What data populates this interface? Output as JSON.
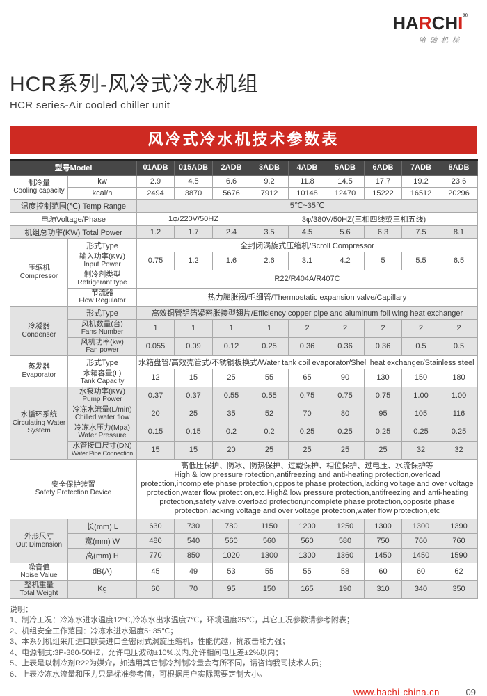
{
  "colors": {
    "accent_red": "#ce2a22",
    "logo_red": "#d2241c",
    "header_row_bg": "#474747",
    "band_gray": "#e3e3e3"
  },
  "logo": {
    "ha": "HA",
    "r": "R",
    "ch": "CH",
    "i": "I",
    "registered": "®",
    "subtitle": "哈驰机械"
  },
  "header": {
    "title": "HCR系列-风冷式冷水机组",
    "subtitle": "HCR series-Air cooled chiller unit",
    "banner": "风冷式冷水机技术参数表"
  },
  "table": {
    "model_header": "型号Model",
    "models": [
      "01ADB",
      "015ADB",
      "2ADB",
      "3ADB",
      "4ADB",
      "5ADB",
      "6ADB",
      "7ADB",
      "8ADB"
    ],
    "cooling": {
      "zh": "制冷量",
      "en": "Cooling capacity",
      "kw_label": "kw",
      "kw": [
        "2.9",
        "4.5",
        "6.6",
        "9.2",
        "11.8",
        "14.5",
        "17.7",
        "19.2",
        "23.6"
      ],
      "kcal_label": "kcal/h",
      "kcal": [
        "2494",
        "3870",
        "5676",
        "7912",
        "10148",
        "12470",
        "15222",
        "16512",
        "20296"
      ]
    },
    "temp_range": {
      "label": "温度控制范围(℃) Temp Range",
      "value": "5℃~35℃"
    },
    "power_supply": {
      "label": "电源Voltage/Phase",
      "single_phase": "1φ/220V/50HZ",
      "three_phase": "3φ/380V/50HZ(三相四线或三相五线)"
    },
    "total_power": {
      "label": "机组总功率(KW) Total Power",
      "values": [
        "1.2",
        "1.7",
        "2.4",
        "3.5",
        "4.5",
        "5.6",
        "6.3",
        "7.5",
        "8.1"
      ]
    },
    "compressor": {
      "zh": "压缩机",
      "en": "Compressor",
      "type_label": "形式Type",
      "type_value": "全封闭涡旋式压缩机/Scroll Compressor",
      "input_zh": "输入功率(KW)",
      "input_en": "Input Power",
      "input_values": [
        "0.75",
        "1.2",
        "1.6",
        "2.6",
        "3.1",
        "4.2",
        "5",
        "5.5",
        "6.5"
      ],
      "refrigerant_zh": "制冷剂类型",
      "refrigerant_en": "Refrigerant type",
      "refrigerant_value": "R22/R404A/R407C",
      "flow_zh": "节流器",
      "flow_en": "Flow Regulator",
      "flow_value": "热力膨胀阀/毛细管/Thermostatic expansion valve/Capillary"
    },
    "condenser": {
      "zh": "冷凝器",
      "en": "Condenser",
      "type_label": "形式Type",
      "type_value": "高效铜管铝箔紧密胀接型翅片/Efficiency copper pipe and aluminum foil wing heat exchanger",
      "fans_zh": "风机数量(台)",
      "fans_en": "Fans Number",
      "fans_values": [
        "1",
        "1",
        "1",
        "1",
        "2",
        "2",
        "2",
        "2",
        "2"
      ],
      "fanpower_zh": "风机功率(kw)",
      "fanpower_en": "Fan power",
      "fanpower_values": [
        "0.055",
        "0.09",
        "0.12",
        "0.25",
        "0.36",
        "0.36",
        "0.36",
        "0.5",
        "0.5"
      ]
    },
    "evaporator": {
      "zh": "蒸发器",
      "en": "Evaporator",
      "type_label": "形式Type",
      "type_value": "水箱盘管/高效壳管式/不锈钢板换式/Water tank coil evaporator/Shell heat exchanger/Stainless steel plate heat exchanger",
      "tank_zh": "水箱容量(L)",
      "tank_en": "Tank Capacity",
      "tank_values": [
        "12",
        "15",
        "25",
        "55",
        "65",
        "90",
        "130",
        "150",
        "180"
      ]
    },
    "water_system": {
      "zh": "水循环系统",
      "en": "Circulating Water System",
      "pump_zh": "水泵功率(KW)",
      "pump_en": "Pump Power",
      "pump_values": [
        "0.37",
        "0.37",
        "0.55",
        "0.55",
        "0.75",
        "0.75",
        "0.75",
        "1.00",
        "1.00"
      ],
      "flow_zh": "冷冻水流量(L/min)",
      "flow_en": "Chilled water flow",
      "flow_values": [
        "20",
        "25",
        "35",
        "52",
        "70",
        "80",
        "95",
        "105",
        "116"
      ],
      "pressure_zh": "冷冻水压力(Mpa)",
      "pressure_en": "Water Pressure",
      "pressure_values": [
        "0.15",
        "0.15",
        "0.2",
        "0.2",
        "0.25",
        "0.25",
        "0.25",
        "0.25",
        "0.25"
      ],
      "pipe_zh": "水管接口尺寸(DN)",
      "pipe_en": "Water Pipe Connection",
      "pipe_values": [
        "15",
        "15",
        "20",
        "25",
        "25",
        "25",
        "25",
        "32",
        "32"
      ]
    },
    "safety": {
      "zh": "安全保护装置",
      "en": "Safety Protection Device",
      "text_zh": "高低压保护、防冰、防热保护、过载保护、相位保护、过电压、水流保护等",
      "text_en": "High & low pressure rotection,antifreezing and anti-heating protection,overload protection,incomplete phase protection,opposite phase protection,lacking voltage and over voltage protection,water flow protection,etc.High& low pressure protection,antifreezing and anti-heating protection,safety valve,overload protection,incomplete phase protection,opposite phase protection,lacking voltage and over voltage protection,water flow protection,etc"
    },
    "dimension": {
      "zh": "外形尺寸",
      "en": "Out Dimension",
      "l_label": "长(mm) L",
      "l_values": [
        "630",
        "730",
        "780",
        "1150",
        "1200",
        "1250",
        "1300",
        "1300",
        "1390"
      ],
      "w_label": "宽(mm) W",
      "w_values": [
        "480",
        "540",
        "560",
        "560",
        "560",
        "580",
        "750",
        "760",
        "760"
      ],
      "h_label": "高(mm) H",
      "h_values": [
        "770",
        "850",
        "1020",
        "1300",
        "1300",
        "1360",
        "1450",
        "1450",
        "1590"
      ]
    },
    "noise": {
      "zh": "噪音值",
      "en": "Noise Value",
      "unit": "dB(A)",
      "values": [
        "45",
        "49",
        "53",
        "55",
        "55",
        "58",
        "60",
        "60",
        "62"
      ]
    },
    "weight": {
      "zh": "整机重量",
      "en": "Total Weight",
      "unit": "Kg",
      "values": [
        "60",
        "70",
        "95",
        "150",
        "165",
        "190",
        "310",
        "340",
        "350"
      ]
    }
  },
  "notes": {
    "heading": "说明：",
    "items": [
      "1、制冷工况：冷冻水进水温度12℃,冷冻水出水温度7℃，环境温度35℃，其它工况参数请参考附表；",
      "2、机组安全工作范围：冷冻水进水温度5~35℃；",
      "3、本系列机组采用进口欧美进口全密闭式涡旋压缩机，性能优越，抗液击能力强；",
      "4、电源制式:3P-380-50HZ，允许电压波动±10%以内,允许相间电压差±2%以内；",
      "5、上表是以制冷剂R22为媒介，如选用其它制冷剂制冷量会有所不同，请咨询我司技术人员；",
      "6、上表冷冻水流量和压力只是标准参考值，可根据用户实际需要定制大小。"
    ]
  },
  "footer": {
    "url": "www.hachi-china.cn",
    "page_number": "09"
  }
}
